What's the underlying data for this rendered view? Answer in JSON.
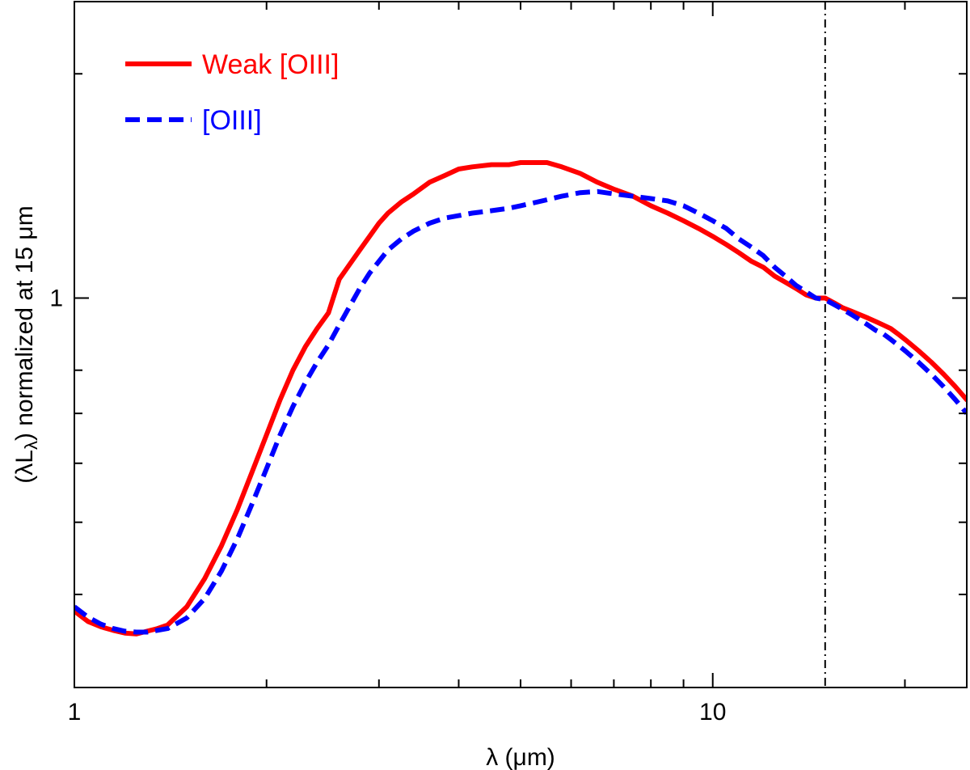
{
  "chart_data": {
    "type": "line",
    "title": "",
    "xlabel": "λ (μm)",
    "ylabel": "(λL_λ) normalized at 15 μm",
    "ylabel_parts": {
      "open": "(λL",
      "sub": "λ",
      "close": ") normalized at 15 μm"
    },
    "xscale": "log",
    "yscale": "log",
    "xlim": [
      1,
      25
    ],
    "ylim": [
      0.3,
      2.5
    ],
    "xticks_major": [
      {
        "value": 1,
        "label": "1"
      },
      {
        "value": 10,
        "label": "10"
      }
    ],
    "xticks_minor": [
      2,
      3,
      4,
      5,
      6,
      7,
      8,
      9,
      20
    ],
    "yticks_major": [
      {
        "value": 1,
        "label": "1"
      }
    ],
    "yticks_minor": [
      0.4,
      0.5,
      0.6,
      0.7,
      0.8,
      2.0
    ],
    "grid": false,
    "legend_position": "top-left",
    "reference_line": {
      "x": 15,
      "style": "dash-dot",
      "color": "#000000"
    },
    "series": [
      {
        "name": "Weak [OIII]",
        "color": "#ff0000",
        "style": "solid",
        "x": [
          1.0,
          1.05,
          1.1,
          1.15,
          1.2,
          1.25,
          1.3,
          1.35,
          1.4,
          1.5,
          1.6,
          1.7,
          1.8,
          1.9,
          2.0,
          2.1,
          2.2,
          2.3,
          2.4,
          2.5,
          2.6,
          2.7,
          2.8,
          2.9,
          3.0,
          3.1,
          3.25,
          3.4,
          3.6,
          3.8,
          4.0,
          4.2,
          4.5,
          4.8,
          5.0,
          5.2,
          5.5,
          5.8,
          6.2,
          6.6,
          7.0,
          7.5,
          8.0,
          8.5,
          9.0,
          9.5,
          10.0,
          10.5,
          11.0,
          11.5,
          12.0,
          12.5,
          13.0,
          13.5,
          14.0,
          14.5,
          15.0,
          15.5,
          16.0,
          16.5,
          17.0,
          17.5,
          18.0,
          18.5,
          19.0,
          19.5,
          20.0,
          21.0,
          22.0,
          23.0,
          24.0,
          25.0
        ],
        "y": [
          0.38,
          0.368,
          0.362,
          0.358,
          0.355,
          0.354,
          0.357,
          0.36,
          0.364,
          0.385,
          0.42,
          0.465,
          0.52,
          0.585,
          0.655,
          0.73,
          0.8,
          0.86,
          0.91,
          0.955,
          1.06,
          1.11,
          1.16,
          1.21,
          1.26,
          1.3,
          1.345,
          1.38,
          1.43,
          1.46,
          1.49,
          1.5,
          1.51,
          1.51,
          1.52,
          1.52,
          1.52,
          1.5,
          1.47,
          1.43,
          1.4,
          1.37,
          1.33,
          1.3,
          1.27,
          1.24,
          1.21,
          1.18,
          1.15,
          1.12,
          1.1,
          1.07,
          1.05,
          1.03,
          1.01,
          1.0,
          1.0,
          0.985,
          0.97,
          0.96,
          0.95,
          0.94,
          0.93,
          0.92,
          0.91,
          0.895,
          0.88,
          0.85,
          0.82,
          0.79,
          0.76,
          0.73
        ]
      },
      {
        "name": "[OIII]",
        "color": "#0000ff",
        "style": "dashed",
        "x": [
          1.0,
          1.05,
          1.1,
          1.15,
          1.2,
          1.25,
          1.3,
          1.35,
          1.4,
          1.5,
          1.6,
          1.7,
          1.8,
          1.9,
          2.0,
          2.1,
          2.2,
          2.3,
          2.4,
          2.5,
          2.6,
          2.7,
          2.8,
          2.9,
          3.0,
          3.1,
          3.25,
          3.4,
          3.6,
          3.8,
          4.0,
          4.2,
          4.5,
          4.8,
          5.0,
          5.2,
          5.5,
          5.8,
          6.2,
          6.6,
          7.0,
          7.5,
          8.0,
          8.5,
          9.0,
          9.5,
          10.0,
          10.5,
          11.0,
          11.5,
          12.0,
          12.5,
          13.0,
          13.5,
          14.0,
          14.5,
          15.0,
          15.5,
          16.0,
          16.5,
          17.0,
          17.5,
          18.0,
          18.5,
          19.0,
          19.5,
          20.0,
          21.0,
          22.0,
          23.0,
          24.0,
          25.0
        ],
        "y": [
          0.385,
          0.373,
          0.365,
          0.36,
          0.357,
          0.356,
          0.356,
          0.358,
          0.36,
          0.372,
          0.395,
          0.43,
          0.475,
          0.53,
          0.59,
          0.655,
          0.715,
          0.77,
          0.82,
          0.865,
          0.92,
          0.975,
          1.03,
          1.08,
          1.12,
          1.16,
          1.2,
          1.23,
          1.26,
          1.28,
          1.29,
          1.3,
          1.31,
          1.32,
          1.33,
          1.34,
          1.355,
          1.37,
          1.385,
          1.39,
          1.38,
          1.37,
          1.36,
          1.35,
          1.33,
          1.3,
          1.27,
          1.24,
          1.2,
          1.17,
          1.14,
          1.1,
          1.07,
          1.04,
          1.02,
          1.0,
          0.995,
          0.98,
          0.965,
          0.95,
          0.935,
          0.92,
          0.905,
          0.895,
          0.88,
          0.865,
          0.85,
          0.82,
          0.79,
          0.76,
          0.73,
          0.7
        ]
      }
    ]
  }
}
